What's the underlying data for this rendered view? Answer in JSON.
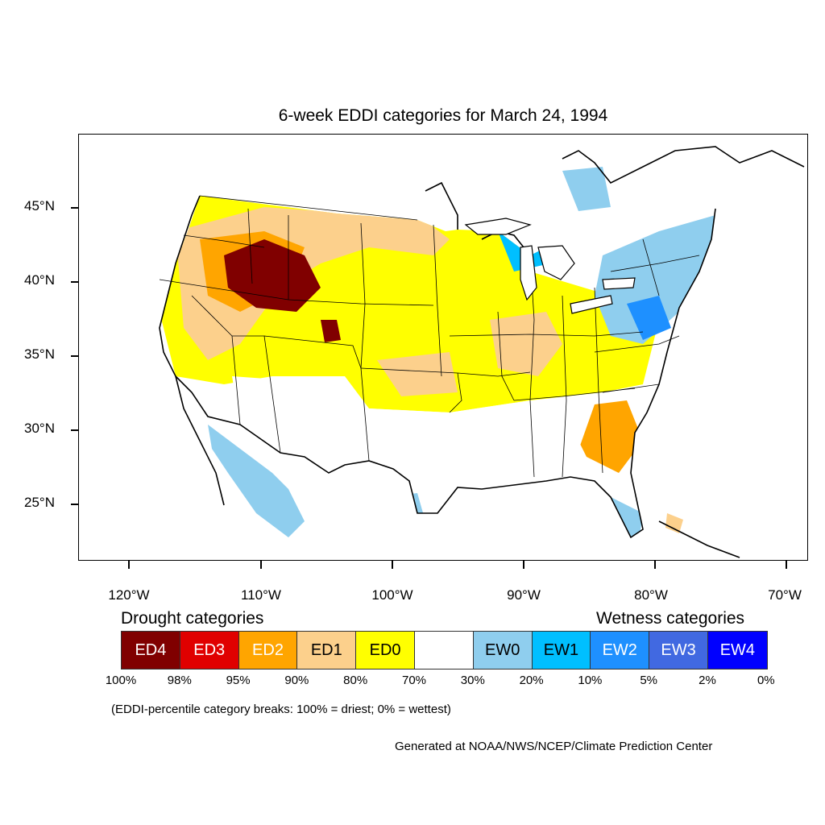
{
  "title": "6-week EDDI categories for March 24, 1994",
  "lat_labels": [
    "45°N",
    "40°N",
    "35°N",
    "30°N",
    "25°N"
  ],
  "lon_labels": [
    "120°W",
    "110°W",
    "100°W",
    "90°W",
    "80°W",
    "70°W"
  ],
  "legend": {
    "drought_heading": "Drought categories",
    "wetness_heading": "Wetness categories",
    "categories": [
      {
        "label": "ED4",
        "color": "#800000",
        "text_color": "#ffffff"
      },
      {
        "label": "ED3",
        "color": "#e00000",
        "text_color": "#ffffff"
      },
      {
        "label": "ED2",
        "color": "#ffa500",
        "text_color": "#ffffff"
      },
      {
        "label": "ED1",
        "color": "#fcd08c",
        "text_color": "#000000"
      },
      {
        "label": "ED0",
        "color": "#ffff00",
        "text_color": "#000000"
      },
      {
        "label": "",
        "color": "#ffffff",
        "text_color": "#000000"
      },
      {
        "label": "EW0",
        "color": "#8fceee",
        "text_color": "#000000"
      },
      {
        "label": "EW1",
        "color": "#00bfff",
        "text_color": "#000000"
      },
      {
        "label": "EW2",
        "color": "#1e90ff",
        "text_color": "#ffffff"
      },
      {
        "label": "EW3",
        "color": "#4169e1",
        "text_color": "#ffffff"
      },
      {
        "label": "EW4",
        "color": "#0000ff",
        "text_color": "#ffffff"
      }
    ],
    "breaks": [
      "100%",
      "98%",
      "95%",
      "90%",
      "80%",
      "70%",
      "30%",
      "20%",
      "10%",
      "5%",
      "2%",
      "0%"
    ]
  },
  "note": "(EDDI-percentile category breaks: 100% = driest; 0% = wettest)",
  "credit": "Generated at NOAA/NWS/NCEP/Climate Prediction Center"
}
